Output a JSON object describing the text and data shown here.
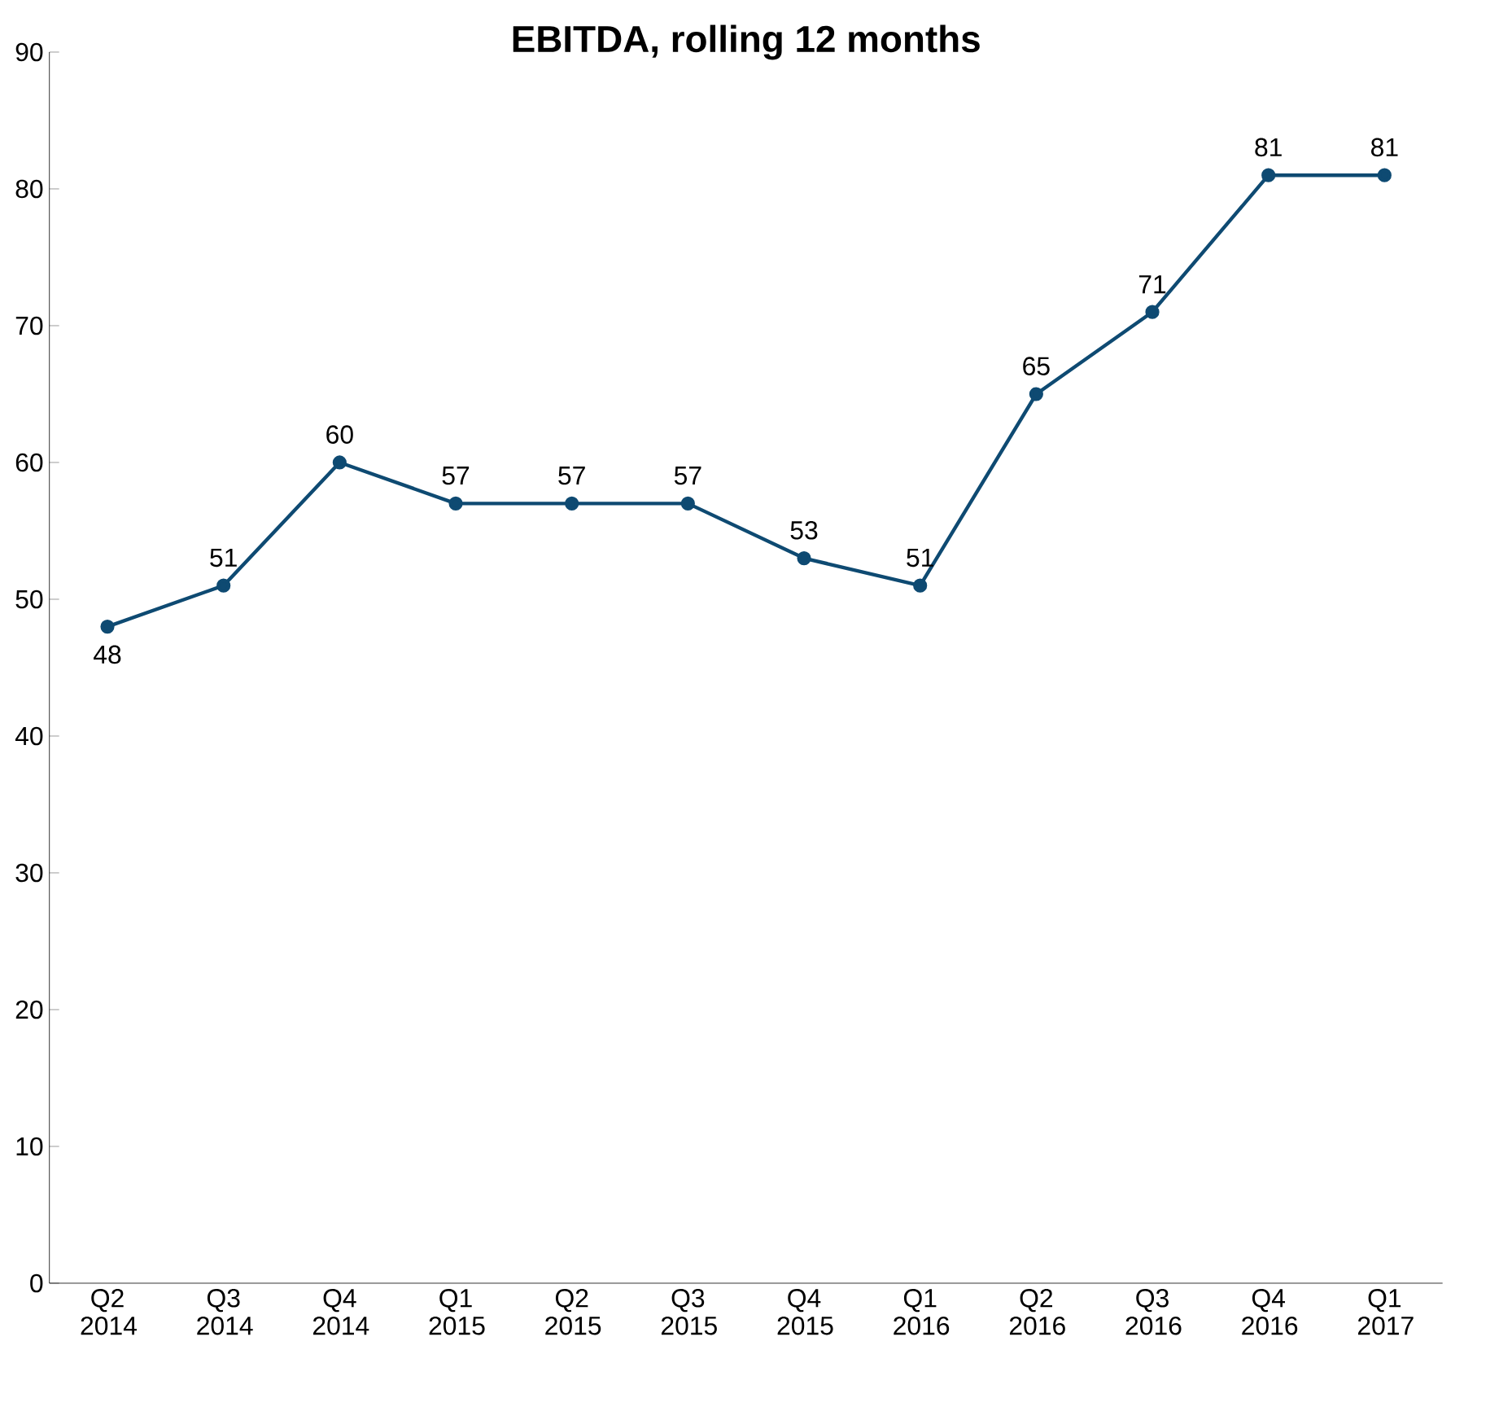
{
  "chart_data": {
    "type": "line",
    "title": "EBITDA, rolling 12 months",
    "categories": [
      "Q2 2014",
      "Q3 2014",
      "Q4 2014",
      "Q1 2015",
      "Q2 2015",
      "Q3 2015",
      "Q4 2015",
      "Q1 2016",
      "Q2 2016",
      "Q3 2016",
      "Q4 2016",
      "Q1 2017"
    ],
    "series": [
      {
        "color": "#0e4a72",
        "values": [
          48,
          51,
          60,
          57,
          57,
          57,
          53,
          51,
          65,
          71,
          81,
          81
        ]
      }
    ],
    "ylim": [
      0,
      90
    ],
    "yticks": [
      0,
      10,
      20,
      30,
      40,
      50,
      60,
      70,
      80,
      90
    ],
    "data_labels": true,
    "marker": "circle",
    "line_style": "solid"
  }
}
